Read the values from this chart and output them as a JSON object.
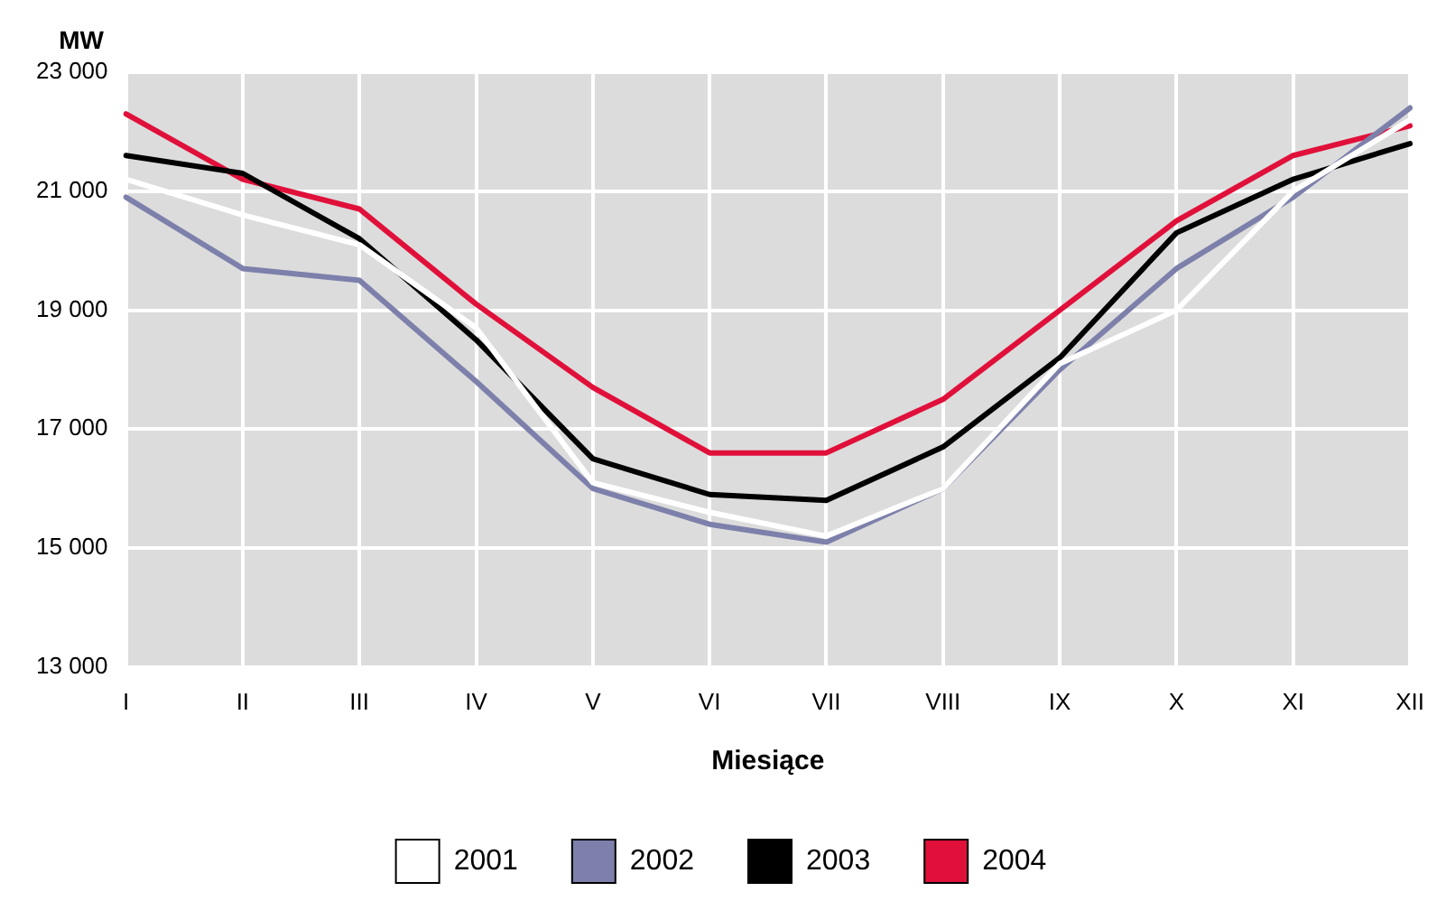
{
  "chart_data": {
    "type": "line",
    "ylabel": "MW",
    "xlabel": "Miesiące",
    "categories": [
      "I",
      "II",
      "III",
      "IV",
      "V",
      "VI",
      "VII",
      "VIII",
      "IX",
      "X",
      "XI",
      "XII"
    ],
    "series": [
      {
        "name": "2001",
        "color": "#ffffff",
        "values": [
          21200,
          20600,
          20100,
          18700,
          16100,
          15600,
          15200,
          16000,
          18100,
          19000,
          21000,
          22200
        ]
      },
      {
        "name": "2002",
        "color": "#7d80aa",
        "values": [
          20900,
          19700,
          19500,
          17800,
          16000,
          15400,
          15100,
          16000,
          18000,
          19700,
          20900,
          22400
        ]
      },
      {
        "name": "2003",
        "color": "#000000",
        "values": [
          21600,
          21300,
          20200,
          18500,
          16500,
          15900,
          15800,
          16700,
          18200,
          20300,
          21200,
          21800
        ]
      },
      {
        "name": "2004",
        "color": "#e0103a",
        "values": [
          22300,
          21200,
          20700,
          19100,
          17700,
          16600,
          16600,
          17500,
          19000,
          20500,
          21600,
          22100
        ]
      }
    ],
    "ylim": [
      13000,
      23000
    ],
    "yticks": [
      {
        "value": 13000,
        "label": "13 000"
      },
      {
        "value": 15000,
        "label": "15 000"
      },
      {
        "value": 17000,
        "label": "17 000"
      },
      {
        "value": 19000,
        "label": "19 000"
      },
      {
        "value": 21000,
        "label": "21 000"
      },
      {
        "value": 23000,
        "label": "23 000"
      }
    ],
    "grid": true,
    "legend": "bottom",
    "marker": "none",
    "line_style": "solid"
  }
}
